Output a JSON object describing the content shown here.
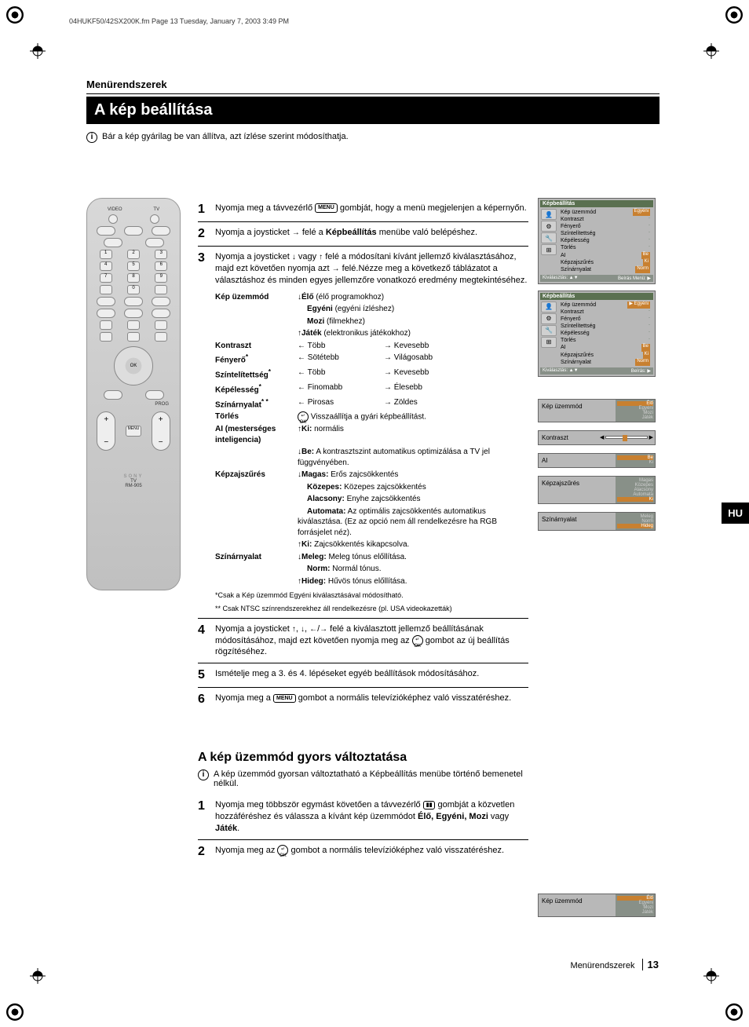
{
  "page_header": "04HUKF50/42SX200K.fm  Page 13  Tuesday, January 7, 2003  3:49 PM",
  "section_label": "Menürendszerek",
  "title": "A kép beállítása",
  "intro_text": "Bár a kép gyárilag be van állítva, azt ízlése szerint módosíthatja.",
  "lang_tab": "HU",
  "remote": {
    "brand": "SONY",
    "label_tv": "TV",
    "model": "RM-905",
    "video": "VIDEO",
    "tv": "TV",
    "prog": "PROG",
    "ok": "OK",
    "menu": "MENU"
  },
  "steps": [
    {
      "num": "1",
      "parts": [
        "Nyomja meg a távvezérlő ",
        "MENU",
        " gombját, hogy a menü megjelenjen a képernyőn."
      ]
    },
    {
      "num": "2",
      "parts": [
        "Nyomja a joysticket ",
        "→",
        " felé a ",
        "Képbeállítás",
        " menübe való belépéshez."
      ]
    },
    {
      "num": "3",
      "intro": [
        "Nyomja a joysticket ",
        "↓",
        " vagy ",
        "↑",
        " felé a módosítani kívánt jellemző kiválasztásához, majd ezt követően nyomja azt ",
        "→",
        " felé.",
        "Nézze meg a következő táblázatot a választáshoz és minden egyes jellemzőre vonatkozó eredmény megtekintéséhez."
      ]
    },
    {
      "num": "4",
      "parts": [
        "Nyomja a joysticket ",
        "↑",
        ", ",
        "↓",
        ", ",
        "←",
        "/",
        "→",
        " felé a kiválasztott jellemző beállításának módosításához, majd ezt követően nyomja meg az ",
        "OK",
        " gombot az új beállítás rögzítéséhez."
      ]
    },
    {
      "num": "5",
      "parts": [
        "Ismételje meg a 3. és 4. lépéseket egyéb beállítások módosításához."
      ]
    },
    {
      "num": "6",
      "parts": [
        "Nyomja meg a ",
        "MENU",
        " gombot a normális televízióképhez való visszatéréshez."
      ]
    }
  ],
  "settings": {
    "rows": [
      {
        "label": "Kép üzemmód",
        "items": [
          {
            "arrow": "↓",
            "bold": "Élő",
            "text": " (élő programokhoz)"
          },
          {
            "indent": true,
            "bold": "Egyéni",
            "text": " (egyéni ízléshez)"
          },
          {
            "indent": true,
            "bold": "Mozi",
            "text": " (filmekhez)"
          },
          {
            "arrow": "↑",
            "bold": "Játék",
            "text": " (elektronikus játékokhoz)"
          }
        ]
      },
      {
        "label": "Kontraszt",
        "pair": {
          "l_arrow": "←",
          "l": "Több",
          "r_arrow": "→",
          "r": "Kevesebb"
        }
      },
      {
        "label": "Fényerő",
        "star": "*",
        "pair": {
          "l_arrow": "←",
          "l": "Sötétebb",
          "r_arrow": "→",
          "r": "Világosabb"
        }
      },
      {
        "label": "Színtelítettség",
        "star": "*",
        "pair": {
          "l_arrow": "←",
          "l": "Több",
          "r_arrow": "→",
          "r": "Kevesebb"
        }
      },
      {
        "label": "Képélesség",
        "star": "*",
        "pair": {
          "l_arrow": "←",
          "l": "Finomabb",
          "r_arrow": "→",
          "r": "Élesebb"
        }
      },
      {
        "label": "Színárnyalat",
        "star": "* *",
        "pair": {
          "l_arrow": "←",
          "l": "Pirosas",
          "r_arrow": "→",
          "r": "Zöldes"
        }
      },
      {
        "label": "Törlés",
        "single": {
          "arrow": "OK",
          "text": "Visszaállítja a gyári képbeállítást."
        }
      },
      {
        "label": "AI",
        "sublabel": "(mesterséges inteligencia)",
        "items": [
          {
            "arrow": "↑",
            "bold": "Ki:",
            "text": " normális"
          },
          {
            "arrow": "↓",
            "bold": "Be:",
            "text": " A kontrasztszint automatikus optimizálása a TV jel függvényében."
          }
        ]
      },
      {
        "label": "Képzajszűrés",
        "items": [
          {
            "arrow": "↓",
            "bold": "Magas:",
            "text": " Erős zajcsökkentés"
          },
          {
            "indent": true,
            "bold": "Közepes:",
            "text": " Közepes zajcsökkentés"
          },
          {
            "indent": true,
            "bold": "Alacsony:",
            "text": " Enyhe zajcsökkentés"
          },
          {
            "indent": true,
            "bold": "Automata:",
            "text": " Az optimális zajcsökkentés automatikus kiválasztása. (Ez az opció nem áll rendelkezésre ha RGB forrásjelet néz)."
          },
          {
            "arrow": "↑",
            "bold": "Ki:",
            "text": " Zajcsökkentés kikapcsolva."
          }
        ]
      },
      {
        "label": "Színárnyalat",
        "items": [
          {
            "arrow": "↓",
            "bold": "Meleg:",
            "text": " Meleg tónus előllítása."
          },
          {
            "indent": true,
            "bold": "Norm:",
            "text": " Normál tónus."
          },
          {
            "arrow": "↑",
            "bold": "Hideg:",
            "text": " Hűvös tónus előllítása."
          }
        ]
      }
    ],
    "footnote1": "*Csak a Kép üzemmód Egyéni kiválasztásával módosítható.",
    "footnote2": "** Csak NTSC színrendszerekhez áll rendelkezésre (pl. USA videokazetták)"
  },
  "osd": {
    "header": "Képbeállítás",
    "items1": [
      {
        "k": "Kép üzemmód",
        "v": "Egyéni",
        "hl": true
      },
      {
        "k": "Kontraszt",
        "v": ""
      },
      {
        "k": "Fényerő",
        "v": ""
      },
      {
        "k": "Színtelítettség",
        "v": ""
      },
      {
        "k": "Képélesség",
        "v": ""
      },
      {
        "k": "Törlés",
        "v": ""
      },
      {
        "k": "AI",
        "v": "Be",
        "chip": true
      },
      {
        "k": "Képzajszűrés",
        "v": "Ki",
        "chip": true
      },
      {
        "k": "Színárnyalat",
        "v": "Norm",
        "chip": true
      }
    ],
    "footer1_l": "Kiválasztás: ▲▼",
    "footer1_r": "Beírás Menü: ▶",
    "items2": [
      {
        "k": "Kép üzemmód",
        "v": "Egyéni",
        "hl": true,
        "arrow": "▶"
      },
      {
        "k": "Kontraszt",
        "v": ""
      },
      {
        "k": "Fényerő",
        "v": ""
      },
      {
        "k": "Színtelítettség",
        "v": ""
      },
      {
        "k": "Képélesség",
        "v": ""
      },
      {
        "k": "Törlés",
        "v": ""
      },
      {
        "k": "AI",
        "v": "Be",
        "chip": true
      },
      {
        "k": "Képzajszűrés",
        "v": "Ki",
        "chip": true
      },
      {
        "k": "Színárnyalat",
        "v": "Norm",
        "chip": true
      }
    ],
    "footer2_l": "Kiválasztás: ▲▼",
    "footer2_r": "Beírás: ▶"
  },
  "popups": [
    {
      "label": "Kép üzemmód",
      "options": [
        "Élő",
        "Egyéni",
        "Mozi",
        "Játék"
      ],
      "sel": 0
    },
    {
      "label": "Kontraszt",
      "slider": true
    },
    {
      "label": "AI",
      "options": [
        "Be",
        "Ki"
      ],
      "sel": 0
    },
    {
      "label": "Képzajszűrés",
      "options": [
        "Magas",
        "Közepes",
        "Alacsony",
        "Automata",
        "Ki"
      ],
      "sel": 4
    },
    {
      "label": "Színárnyalat",
      "options": [
        "Meleg",
        "Norm",
        "Hideg"
      ],
      "sel": 2
    }
  ],
  "sub": {
    "heading": "A kép üzemmód gyors változtatása",
    "intro": "A kép üzemmód gyorsan változtatható a Képbeállítás menübe történő bemenetel nélkül.",
    "steps": [
      {
        "num": "1",
        "text": "Nyomja meg többször egymást követően a távvezérlő ",
        "badge": "▮▮",
        "text2": " gombját a közvetlen hozzáféréshez és válassza a kívánt kép üzemmódot ",
        "bold": "Élő, Egyéni, Mozi",
        "text3": " vagy ",
        "bold2": "Játék",
        "text4": "."
      },
      {
        "num": "2",
        "text": "Nyomja meg az ",
        "ok": true,
        "text2": " gombot a normális televízióképhez való visszatéréshez."
      }
    ],
    "popup": {
      "label": "Kép üzemmód",
      "options": [
        "Élő",
        "Egyéni",
        "Mozi",
        "Játék"
      ],
      "sel": 0
    }
  },
  "footer": {
    "label": "Menürendszerek",
    "page": "13"
  },
  "colors": {
    "accent": "#c88030",
    "osd_bg": "#b8b8b8",
    "osd_header": "#5a7050",
    "osd_footer": "#889088"
  }
}
